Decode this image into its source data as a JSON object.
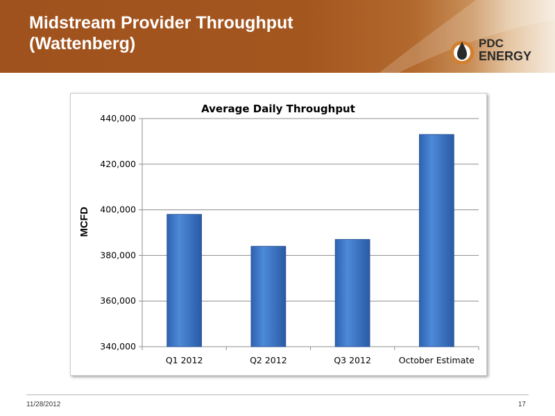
{
  "slide": {
    "title_line1": "Midstream Provider Throughput",
    "title_line2": "(Wattenberg)",
    "logo_top": "PDC",
    "logo_bottom": "ENERGY",
    "footer_date": "11/28/2012",
    "page_number": "17"
  },
  "colors": {
    "header_brown": "#a0521e",
    "bar_blue": "#3b74c4",
    "logo_orange": "#d2802e"
  },
  "chart_data": {
    "type": "bar",
    "title": "Average Daily Throughput",
    "xlabel": "",
    "ylabel": "MCFD",
    "categories": [
      "Q1 2012",
      "Q2 2012",
      "Q3 2012",
      "October Estimate"
    ],
    "values": [
      398000,
      384000,
      387000,
      433000
    ],
    "ylim": [
      340000,
      440000
    ],
    "yticks": [
      340000,
      360000,
      380000,
      400000,
      420000,
      440000
    ],
    "ytick_labels": [
      "340,000",
      "360,000",
      "380,000",
      "400,000",
      "420,000",
      "440,000"
    ],
    "grid": true,
    "legend": "none"
  }
}
